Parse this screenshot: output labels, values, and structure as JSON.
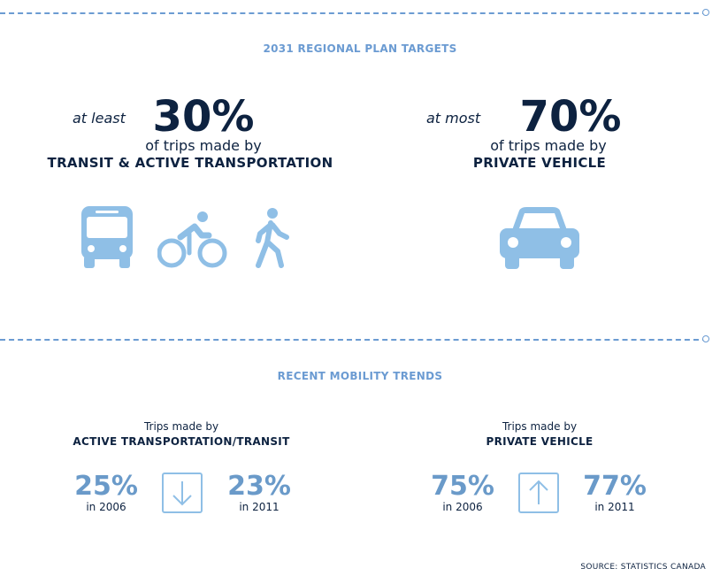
{
  "plan": {
    "heading": "2031 REGIONAL PLAN TARGETS",
    "left": {
      "qualifier": "at least",
      "value": "30%",
      "line": "of trips made by",
      "mode": "TRANSIT & ACTIVE TRANSPORTATION",
      "icons": [
        "bus-icon",
        "bicycle-icon",
        "pedestrian-icon"
      ]
    },
    "right": {
      "qualifier": "at most",
      "value": "70%",
      "line": "of trips made by",
      "mode": "PRIVATE VEHICLE",
      "icons": [
        "car-icon"
      ]
    }
  },
  "trends": {
    "heading": "RECENT MOBILITY TRENDS",
    "left": {
      "line": "Trips made by",
      "mode": "ACTIVE TRANSPORTATION/TRANSIT",
      "from": {
        "value": "25%",
        "year": "in 2006"
      },
      "to": {
        "value": "23%",
        "year": "in 2011"
      },
      "direction": "down"
    },
    "right": {
      "line": "Trips made by",
      "mode": "PRIVATE VEHICLE",
      "from": {
        "value": "75%",
        "year": "in 2006"
      },
      "to": {
        "value": "77%",
        "year": "in 2011"
      },
      "direction": "up"
    }
  },
  "source": "SOURCE: STATISTICS CANADA",
  "colors": {
    "navy": "#0d2240",
    "accent": "#6b9bd2",
    "icon": "#8fbfe6"
  }
}
